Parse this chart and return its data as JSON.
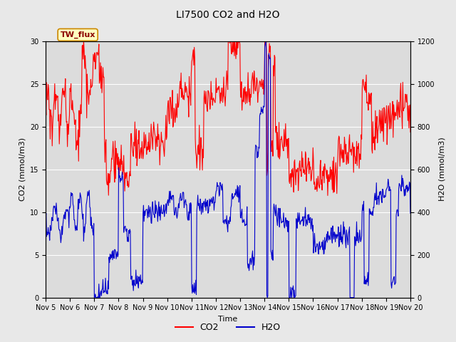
{
  "title": "LI7500 CO2 and H2O",
  "xlabel": "Time",
  "ylabel_left": "CO2 (mmol/m3)",
  "ylabel_right": "H2O (mmol/m3)",
  "co2_color": "#FF0000",
  "h2o_color": "#0000CC",
  "co2_lw": 0.8,
  "h2o_lw": 0.8,
  "ylim_left": [
    0,
    30
  ],
  "ylim_right": [
    0,
    1200
  ],
  "yticks_left": [
    0,
    5,
    10,
    15,
    20,
    25,
    30
  ],
  "yticks_right": [
    0,
    200,
    400,
    600,
    800,
    1000,
    1200
  ],
  "bg_color": "#E8E8E8",
  "plot_bg_color": "#DCDCDC",
  "legend_label": "TW_flux",
  "figsize": [
    6.4,
    4.8
  ],
  "dpi": 100,
  "title_fontsize": 10,
  "axis_fontsize": 8,
  "tick_fontsize": 7,
  "legend_fontsize": 9
}
